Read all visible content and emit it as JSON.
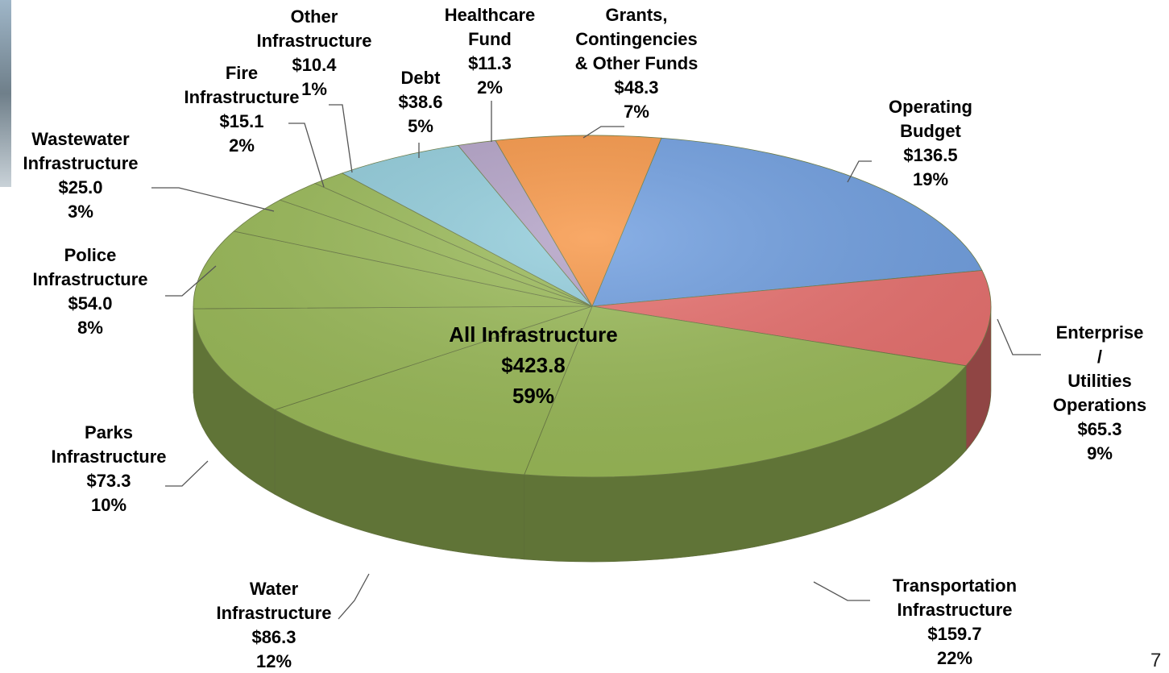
{
  "chart_data": {
    "type": "pie",
    "categories": [
      "Operating\nBudget",
      "Enterprise /\nUtilities\nOperations",
      "Transportation\nInfrastructure",
      "Water\nInfrastructure",
      "Parks\nInfrastructure",
      "Police\nInfrastructure",
      "Wastewater\nInfrastructure",
      "Fire\nInfrastructure",
      "Other\nInfrastructure",
      "Debt",
      "Healthcare\nFund",
      "Grants,\nContingencies\n& Other Funds"
    ],
    "values": [
      136.5,
      65.3,
      159.7,
      86.3,
      73.3,
      54.0,
      25.0,
      15.1,
      10.4,
      38.6,
      11.3,
      48.3
    ],
    "value_labels": [
      "$136.5",
      "$65.3",
      "$159.7",
      "$86.3",
      "$73.3",
      "$54.0",
      "$25.0",
      "$15.1",
      "$10.4",
      "$38.6",
      "$11.3",
      "$48.3"
    ],
    "percents": [
      19,
      9,
      22,
      12,
      10,
      8,
      3,
      2,
      1,
      5,
      2,
      7
    ],
    "percent_labels": [
      "19%",
      "9%",
      "22%",
      "12%",
      "10%",
      "8%",
      "3%",
      "2%",
      "1%",
      "5%",
      "2%",
      "7%"
    ],
    "colors": [
      "#6f9ee0",
      "#e8706e",
      "#9bbb59",
      "#9bbb59",
      "#9bbb59",
      "#9bbb59",
      "#9bbb59",
      "#9bbb59",
      "#9bbb59",
      "#92cddc",
      "#b3a2c7",
      "#f79646"
    ],
    "group": {
      "label": "All Infrastructure",
      "value": 423.8,
      "value_label": "$423.8",
      "percent": 59,
      "percent_label": "59%"
    },
    "page_number": 7
  }
}
